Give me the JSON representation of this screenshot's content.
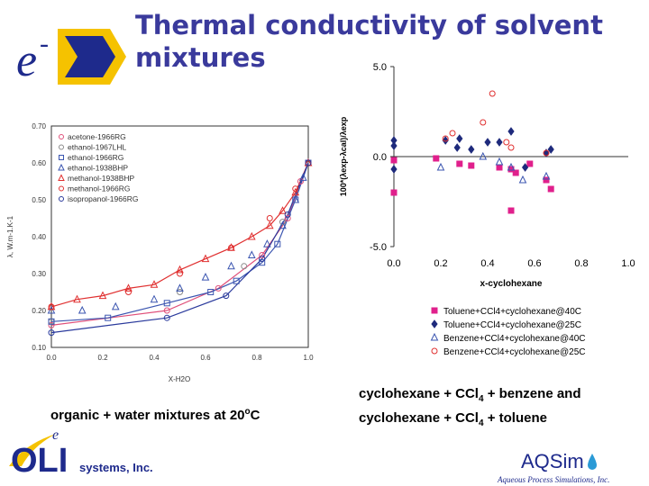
{
  "slide": {
    "title_line1": "Thermal conductivity of solvent",
    "title_line2": "mixtures",
    "caption_left_prefix": "organic + water mixtures at 20",
    "caption_left_sup": "o",
    "caption_left_suffix": "C",
    "caption_right_line1_a": "cyclohexane + CCl",
    "caption_right_line1_sub": "4",
    "caption_right_line1_b": " + benzene and",
    "caption_right_line2_a": "cyclohexane + CCl",
    "caption_right_line2_sub": "4",
    "caption_right_line2_b": " + toluene"
  },
  "branding": {
    "logo_letter": "e",
    "logo_sup": "-",
    "oli_name": "OLI",
    "oli_systems": "systems, Inc.",
    "aqsim_name": "AQSim",
    "aqsim_tagline": "Aqueous Process Simulations, Inc.",
    "colors": {
      "title": "#3a3a9c",
      "logo_yellow": "#f5c200",
      "logo_blue": "#1e2a8c",
      "aqsim_drop": "#2a9ad6"
    }
  },
  "chart_data": [
    {
      "type": "scatter",
      "title": "",
      "xlabel": "X-H2O",
      "ylabel": "λ, W.m-1.K-1",
      "xlim": [
        0.0,
        1.0
      ],
      "ylim": [
        0.1,
        0.7
      ],
      "xticks": [
        "0.0",
        "0.2",
        "0.4",
        "0.6",
        "0.8",
        "1.0"
      ],
      "yticks": [
        "0.10",
        "0.20",
        "0.30",
        "0.40",
        "0.50",
        "0.60",
        "0.70"
      ],
      "legend_position": "top-left",
      "series": [
        {
          "name": "acetone-1966RG",
          "marker": "circle",
          "color": "#e0507a",
          "points": [
            [
              0.0,
              0.16
            ],
            [
              0.45,
              0.2
            ],
            [
              0.65,
              0.26
            ],
            [
              0.82,
              0.35
            ],
            [
              0.92,
              0.45
            ],
            [
              0.97,
              0.55
            ],
            [
              1.0,
              0.6
            ]
          ]
        },
        {
          "name": "ethanol-1967LHL",
          "marker": "circle",
          "color": "#8a8a8a",
          "points": [
            [
              0.0,
              0.17
            ],
            [
              0.5,
              0.25
            ],
            [
              0.75,
              0.32
            ],
            [
              0.9,
              0.44
            ],
            [
              1.0,
              0.6
            ]
          ]
        },
        {
          "name": "ethanol-1966RG",
          "marker": "square",
          "color": "#3b55b0",
          "points": [
            [
              0.0,
              0.17
            ],
            [
              0.22,
              0.18
            ],
            [
              0.45,
              0.22
            ],
            [
              0.62,
              0.25
            ],
            [
              0.72,
              0.28
            ],
            [
              0.82,
              0.33
            ],
            [
              0.88,
              0.38
            ],
            [
              0.95,
              0.5
            ],
            [
              1.0,
              0.6
            ]
          ]
        },
        {
          "name": "ethanol-1938BHP",
          "marker": "triangle",
          "color": "#3b55b0",
          "points": [
            [
              0.0,
              0.2
            ],
            [
              0.12,
              0.2
            ],
            [
              0.25,
              0.21
            ],
            [
              0.4,
              0.23
            ],
            [
              0.5,
              0.26
            ],
            [
              0.6,
              0.29
            ],
            [
              0.7,
              0.32
            ],
            [
              0.78,
              0.35
            ],
            [
              0.84,
              0.38
            ],
            [
              0.9,
              0.43
            ],
            [
              0.95,
              0.5
            ],
            [
              0.98,
              0.56
            ],
            [
              1.0,
              0.6
            ]
          ]
        },
        {
          "name": "methanol-1938BHP",
          "marker": "triangle",
          "color": "#e03030",
          "points": [
            [
              0.0,
              0.21
            ],
            [
              0.1,
              0.23
            ],
            [
              0.2,
              0.24
            ],
            [
              0.3,
              0.26
            ],
            [
              0.4,
              0.27
            ],
            [
              0.5,
              0.31
            ],
            [
              0.6,
              0.34
            ],
            [
              0.7,
              0.37
            ],
            [
              0.78,
              0.4
            ],
            [
              0.85,
              0.43
            ],
            [
              0.9,
              0.47
            ],
            [
              0.95,
              0.52
            ],
            [
              1.0,
              0.6
            ]
          ]
        },
        {
          "name": "methanol-1966RG",
          "marker": "circle",
          "color": "#e03030",
          "points": [
            [
              0.0,
              0.21
            ],
            [
              0.3,
              0.25
            ],
            [
              0.5,
              0.3
            ],
            [
              0.7,
              0.37
            ],
            [
              0.85,
              0.45
            ],
            [
              0.95,
              0.53
            ],
            [
              1.0,
              0.6
            ]
          ]
        },
        {
          "name": "isopropanol-1966RG",
          "marker": "circle",
          "color": "#2a3a9c",
          "points": [
            [
              0.0,
              0.14
            ],
            [
              0.45,
              0.18
            ],
            [
              0.68,
              0.24
            ],
            [
              0.82,
              0.34
            ],
            [
              0.92,
              0.46
            ],
            [
              1.0,
              0.6
            ]
          ]
        }
      ]
    },
    {
      "type": "scatter",
      "title": "",
      "xlabel": "x-cyclohexane",
      "ylabel": "100*(λexp-λcal)/λexp",
      "xlim": [
        0.0,
        1.0
      ],
      "ylim": [
        -5.0,
        5.0
      ],
      "xticks": [
        "0.0",
        "0.2",
        "0.4",
        "0.6",
        "0.8",
        "1.0"
      ],
      "yticks": [
        "5.0",
        "0.0",
        "-5.0"
      ],
      "legend_position": "bottom-right",
      "series": [
        {
          "name": "Toluene+CCl4+cyclohexane@40C",
          "marker": "square",
          "color": "#e0208c",
          "points": [
            [
              0.0,
              -0.2
            ],
            [
              0.0,
              -2.0
            ],
            [
              0.18,
              -0.1
            ],
            [
              0.28,
              -0.4
            ],
            [
              0.33,
              -0.5
            ],
            [
              0.45,
              -0.6
            ],
            [
              0.5,
              -0.7
            ],
            [
              0.52,
              -0.9
            ],
            [
              0.58,
              -0.4
            ],
            [
              0.65,
              -1.3
            ],
            [
              0.67,
              -1.8
            ],
            [
              0.5,
              -3.0
            ]
          ]
        },
        {
          "name": "Toluene+CCl4+cyclohexane@25C",
          "marker": "diamond",
          "color": "#1e2a7c",
          "points": [
            [
              0.0,
              0.9
            ],
            [
              0.0,
              0.6
            ],
            [
              0.0,
              -0.7
            ],
            [
              0.22,
              0.9
            ],
            [
              0.27,
              0.5
            ],
            [
              0.28,
              1.0
            ],
            [
              0.33,
              0.4
            ],
            [
              0.4,
              0.8
            ],
            [
              0.45,
              0.8
            ],
            [
              0.5,
              1.4
            ],
            [
              0.56,
              -0.6
            ],
            [
              0.65,
              0.2
            ],
            [
              0.67,
              0.4
            ]
          ]
        },
        {
          "name": "Benzene+CCl4+cyclohexane@40C",
          "marker": "triangle",
          "color": "#3b55b0",
          "points": [
            [
              0.2,
              -0.6
            ],
            [
              0.38,
              0.0
            ],
            [
              0.45,
              -0.3
            ],
            [
              0.5,
              -0.6
            ],
            [
              0.55,
              -1.3
            ],
            [
              0.65,
              -1.1
            ]
          ]
        },
        {
          "name": "Benzene+CCl4+cyclohexane@25C",
          "marker": "circle",
          "color": "#e03030",
          "points": [
            [
              0.22,
              1.0
            ],
            [
              0.25,
              1.3
            ],
            [
              0.38,
              1.9
            ],
            [
              0.42,
              3.5
            ],
            [
              0.5,
              0.5
            ],
            [
              0.48,
              0.8
            ],
            [
              0.65,
              0.2
            ]
          ]
        }
      ]
    }
  ]
}
